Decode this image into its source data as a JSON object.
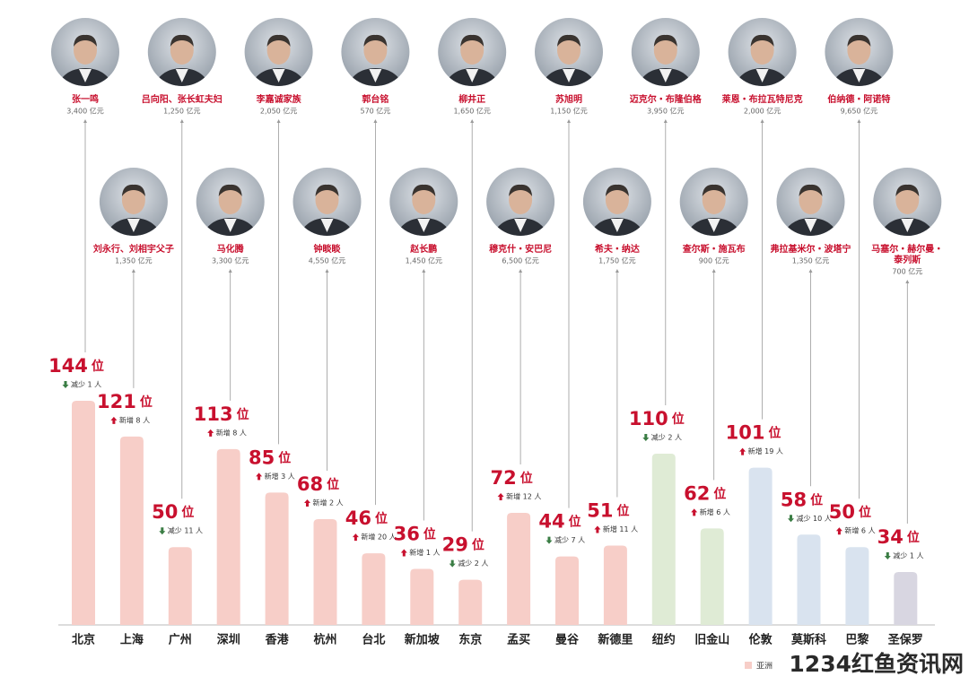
{
  "chart_data": {
    "type": "bar",
    "categories": [
      "北京",
      "上海",
      "广州",
      "深圳",
      "香港",
      "杭州",
      "台北",
      "新加坡",
      "东京",
      "孟买",
      "曼谷",
      "新德里",
      "纽约",
      "旧金山",
      "伦敦",
      "莫斯科",
      "巴黎",
      "圣保罗"
    ],
    "values": [
      144,
      121,
      50,
      113,
      85,
      68,
      46,
      36,
      29,
      72,
      44,
      51,
      110,
      62,
      101,
      58,
      50,
      34
    ],
    "unit": "位",
    "colors": [
      "#f7cec8",
      "#f7cec8",
      "#f7cec8",
      "#f7cec8",
      "#f7cec8",
      "#f7cec8",
      "#f7cec8",
      "#f7cec8",
      "#f7cec8",
      "#f7cec8",
      "#f7cec8",
      "#f7cec8",
      "#dfebd5",
      "#dfebd5",
      "#d9e3ef",
      "#d9e3ef",
      "#d9e3ef",
      "#d8d6e1"
    ],
    "changes": [
      -1,
      8,
      -11,
      8,
      3,
      2,
      20,
      1,
      -2,
      12,
      -7,
      11,
      -2,
      6,
      19,
      -10,
      6,
      -1
    ],
    "change_labels": [
      "减少 1 人",
      "新增 8 人",
      "减少 11 人",
      "新增 8 人",
      "新增 3 人",
      "新增 2 人",
      "新增 20 人",
      "新增 1 人",
      "减少 2 人",
      "新增 12 人",
      "减少 7 人",
      "新增 11 人",
      "减少 2 人",
      "新增 6 人",
      "新增 19 人",
      "减少 10 人",
      "新增 6 人",
      "减少 1 人"
    ],
    "people": [
      {
        "name_lines": [
          "张一鸣"
        ],
        "wealth": 3400,
        "wealth_label": "3,400 亿元"
      },
      {
        "name_lines": [
          "刘永行、刘相宇父子"
        ],
        "wealth": 1350,
        "wealth_label": "1,350 亿元"
      },
      {
        "name_lines": [
          "吕向阳、张长虹夫妇"
        ],
        "wealth": 1250,
        "wealth_label": "1,250 亿元"
      },
      {
        "name_lines": [
          "马化腾"
        ],
        "wealth": 3300,
        "wealth_label": "3,300 亿元"
      },
      {
        "name_lines": [
          "李嘉诚家族"
        ],
        "wealth": 2050,
        "wealth_label": "2,050 亿元"
      },
      {
        "name_lines": [
          "钟睒睒"
        ],
        "wealth": 4550,
        "wealth_label": "4,550 亿元"
      },
      {
        "name_lines": [
          "郭台铭"
        ],
        "wealth": 570,
        "wealth_label": "570 亿元"
      },
      {
        "name_lines": [
          "赵长鹏"
        ],
        "wealth": 1450,
        "wealth_label": "1,450 亿元"
      },
      {
        "name_lines": [
          "柳井正"
        ],
        "wealth": 1650,
        "wealth_label": "1,650 亿元"
      },
      {
        "name_lines": [
          "穆克什・安巴尼"
        ],
        "wealth": 6500,
        "wealth_label": "6,500 亿元"
      },
      {
        "name_lines": [
          "苏旭明"
        ],
        "wealth": 1150,
        "wealth_label": "1,150 亿元"
      },
      {
        "name_lines": [
          "希夫・纳达"
        ],
        "wealth": 1750,
        "wealth_label": "1,750 亿元"
      },
      {
        "name_lines": [
          "迈克尔・布隆伯格"
        ],
        "wealth": 3950,
        "wealth_label": "3,950 亿元"
      },
      {
        "name_lines": [
          "查尔斯・施瓦布"
        ],
        "wealth": 900,
        "wealth_label": "900 亿元"
      },
      {
        "name_lines": [
          "莱恩・布拉瓦特尼克"
        ],
        "wealth": 2000,
        "wealth_label": "2,000 亿元"
      },
      {
        "name_lines": [
          "弗拉基米尔・波塔宁"
        ],
        "wealth": 1350,
        "wealth_label": "1,350 亿元"
      },
      {
        "name_lines": [
          "伯纳德・阿诺特"
        ],
        "wealth": 9650,
        "wealth_label": "9,650 亿元"
      },
      {
        "name_lines": [
          "马塞尔・赫尔曼・",
          "泰列斯"
        ],
        "wealth": 700,
        "wealth_label": "700 亿元"
      }
    ],
    "legend": [
      {
        "name": "亚洲",
        "color": "#f7cec8"
      }
    ],
    "watermark": "1234红鱼资讯网"
  }
}
